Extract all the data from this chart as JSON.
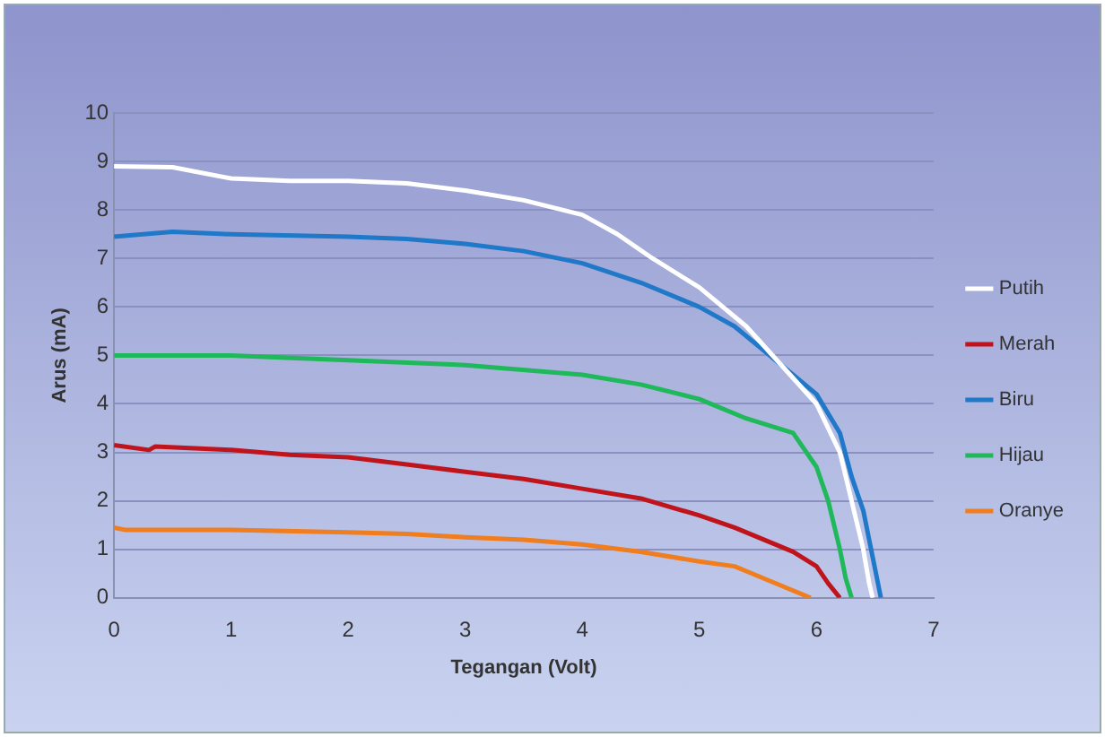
{
  "chart_data": {
    "type": "line",
    "xlabel": "Tegangan (Volt)",
    "ylabel": "Arus (mA)",
    "xlim": [
      0,
      7
    ],
    "xticks": [
      0,
      1,
      2,
      3,
      4,
      5,
      6,
      7
    ],
    "ylim": [
      0,
      10
    ],
    "yticks": [
      0,
      1,
      2,
      3,
      4,
      5,
      6,
      7,
      8,
      9,
      10
    ],
    "grid": "y",
    "legend": "right",
    "marker": "none",
    "line_style": "solid",
    "series": [
      {
        "name": "Putih",
        "color": "#ffffff",
        "x": [
          0,
          0.5,
          1,
          1.5,
          2,
          2.5,
          3,
          3.5,
          4,
          4.3,
          4.6,
          5,
          5.4,
          5.7,
          6,
          6.2,
          6.3,
          6.4,
          6.45,
          6.48
        ],
        "values": [
          8.9,
          8.88,
          8.65,
          8.6,
          8.6,
          8.55,
          8.4,
          8.2,
          7.9,
          7.5,
          7.0,
          6.4,
          5.6,
          4.8,
          4.0,
          3.0,
          2.0,
          1.0,
          0.3,
          0
        ]
      },
      {
        "name": "Merah",
        "color": "#c0141c",
        "x": [
          0,
          0.3,
          0.35,
          1,
          1.5,
          2,
          2.5,
          3,
          3.5,
          4,
          4.5,
          5,
          5.3,
          5.8,
          6,
          6.1,
          6.2
        ],
        "values": [
          3.15,
          3.05,
          3.12,
          3.05,
          2.95,
          2.9,
          2.75,
          2.6,
          2.45,
          2.25,
          2.05,
          1.7,
          1.45,
          0.95,
          0.65,
          0.3,
          0
        ]
      },
      {
        "name": "Biru",
        "color": "#1f78c8",
        "x": [
          0,
          0.5,
          1,
          2,
          2.5,
          3,
          3.5,
          4,
          4.5,
          5,
          5.3,
          5.6,
          5.8,
          6,
          6.2,
          6.3,
          6.4,
          6.45,
          6.5,
          6.55
        ],
        "values": [
          7.45,
          7.55,
          7.5,
          7.45,
          7.4,
          7.3,
          7.15,
          6.9,
          6.5,
          6.0,
          5.6,
          5.0,
          4.6,
          4.2,
          3.4,
          2.5,
          1.8,
          1.2,
          0.6,
          0
        ]
      },
      {
        "name": "Hijau",
        "color": "#1fb85a",
        "x": [
          0,
          1,
          2,
          3,
          4,
          4.5,
          5,
          5.4,
          5.8,
          6,
          6.1,
          6.2,
          6.25,
          6.3
        ],
        "values": [
          5.0,
          5.0,
          4.9,
          4.8,
          4.6,
          4.4,
          4.1,
          3.7,
          3.4,
          2.7,
          2.0,
          1.0,
          0.4,
          0
        ]
      },
      {
        "name": "Oranye",
        "color": "#f07d1e",
        "x": [
          0,
          0.1,
          1,
          2,
          2.5,
          3,
          3.5,
          4,
          4.5,
          5,
          5.3,
          5.4,
          5.7,
          5.95
        ],
        "values": [
          1.45,
          1.4,
          1.4,
          1.35,
          1.32,
          1.25,
          1.2,
          1.1,
          0.95,
          0.75,
          0.65,
          0.55,
          0.25,
          0
        ]
      }
    ]
  }
}
